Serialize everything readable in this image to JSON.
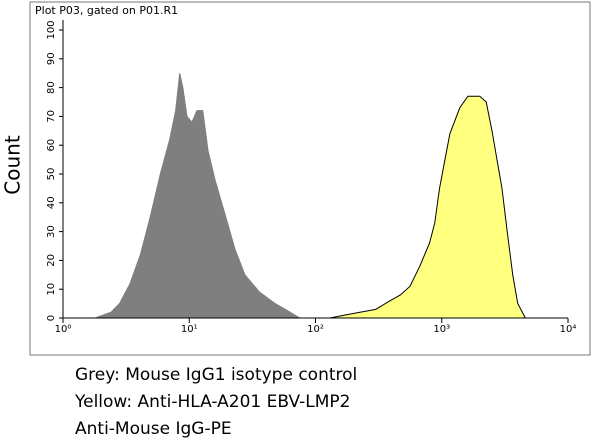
{
  "chart_data": {
    "type": "area",
    "title": "Plot P03, gated on P01.R1",
    "ylabel": "Count",
    "xlog": true,
    "xlim": [
      1,
      10000
    ],
    "xticks": [
      {
        "value": 1,
        "label": "10⁰"
      },
      {
        "value": 10,
        "label": "10¹"
      },
      {
        "value": 100,
        "label": "10²"
      },
      {
        "value": 1000,
        "label": "10³"
      },
      {
        "value": 10000,
        "label": "10⁴"
      }
    ],
    "ylim": [
      0,
      100
    ],
    "yticks": [
      0,
      10,
      20,
      30,
      40,
      50,
      60,
      70,
      80,
      90,
      100
    ],
    "series": [
      {
        "color": "#7f7f7f",
        "edgecolor": "#7f7f7f",
        "x": [
          1.8,
          2.4,
          2.8,
          3.4,
          4.1,
          4.9,
          5.9,
          7.0,
          7.8,
          8.4,
          8.9,
          9.6,
          10.5,
          11.5,
          12.8,
          14.1,
          16,
          19.2,
          23,
          27.6,
          36,
          48,
          63,
          75
        ],
        "values": [
          0,
          2,
          5,
          12,
          22,
          35,
          50,
          62,
          72,
          85,
          80,
          70,
          68,
          72,
          72,
          58,
          48,
          36,
          24,
          15,
          9,
          5,
          2,
          0
        ]
      },
      {
        "color": "#ffff80",
        "edgecolor": "#000000",
        "x": [
          130,
          170,
          225,
          300,
          390,
          470,
          560,
          670,
          800,
          880,
          960,
          1060,
          1160,
          1390,
          1610,
          2000,
          2250,
          2500,
          3000,
          3300,
          3650,
          4000,
          4600
        ],
        "values": [
          0,
          1,
          2,
          3,
          6,
          8,
          11,
          18,
          26,
          33,
          45,
          55,
          64,
          73,
          77,
          77,
          75,
          65,
          45,
          30,
          15,
          5,
          0
        ]
      }
    ],
    "caption": [
      "Grey: Mouse IgG1 isotype control",
      "Yellow: Anti-HLA-A201 EBV-LMP2",
      "Anti-Mouse IgG-PE"
    ]
  }
}
